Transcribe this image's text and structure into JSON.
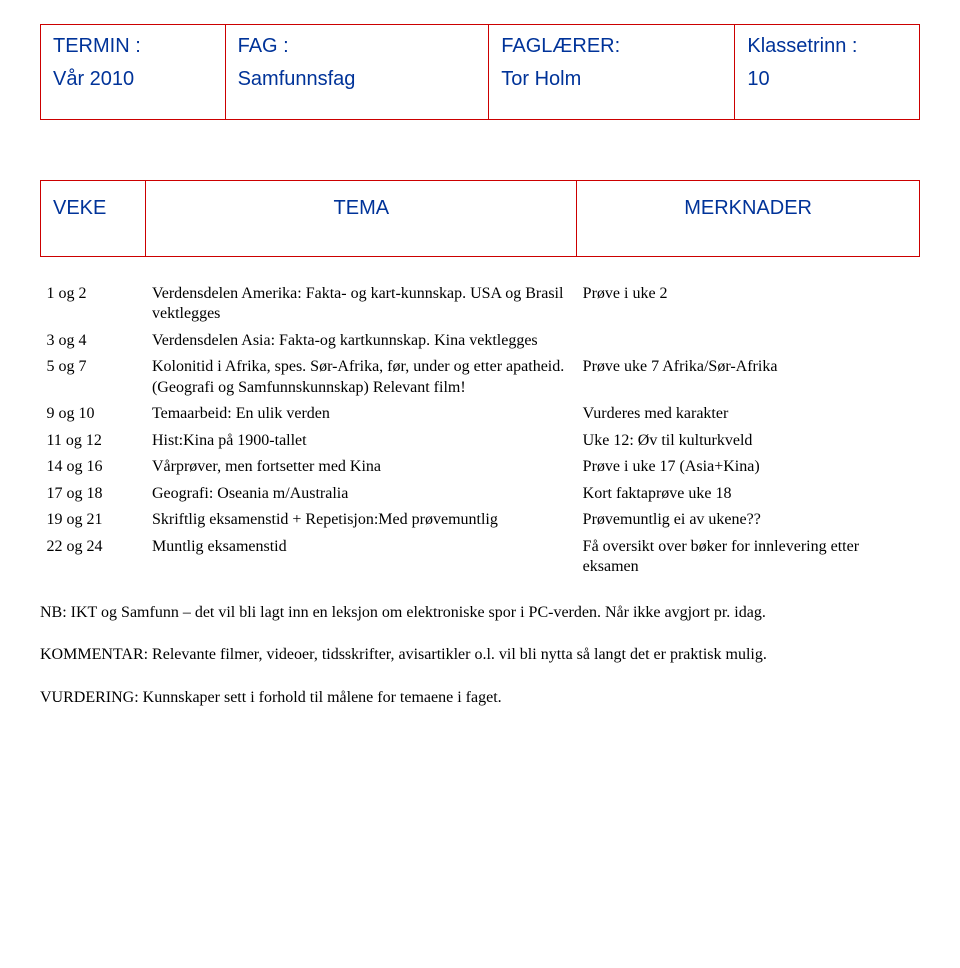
{
  "header": {
    "termin_label": "TERMIN :",
    "termin_value": "Vår 2010",
    "fag_label": "FAG :",
    "fag_value": "Samfunnsfag",
    "laerer_label": "FAGLÆRER:",
    "laerer_value": "Tor Holm",
    "trinn_label": "Klassetrinn :",
    "trinn_value": "10"
  },
  "columns": {
    "week": "VEKE",
    "tema": "TEMA",
    "merk": "MERKNADER"
  },
  "rows": [
    {
      "week": "1 og 2",
      "tema": "Verdensdelen Amerika: Fakta- og kart-kunnskap. USA og Brasil vektlegges",
      "merk": "Prøve i uke 2"
    },
    {
      "week": "3 og 4",
      "tema": "Verdensdelen Asia: Fakta-og kartkunnskap. Kina vektlegges",
      "merk": ""
    },
    {
      "week": "5 og 7",
      "tema": "Kolonitid i Afrika, spes. Sør-Afrika, før, under og etter apatheid.(Geografi og Samfunnskunnskap) Relevant film!",
      "merk": "Prøve uke 7 Afrika/Sør-Afrika"
    },
    {
      "week": "9 og 10",
      "tema": "Temaarbeid: En ulik verden",
      "merk": "Vurderes med karakter"
    },
    {
      "week": "11 og 12",
      "tema": "Hist:Kina på 1900-tallet",
      "merk": "Uke 12: Øv til kulturkveld"
    },
    {
      "week": "14 og 16",
      "tema": "Vårprøver, men fortsetter med Kina",
      "merk": "Prøve i uke 17 (Asia+Kina)"
    },
    {
      "week": "17 og 18",
      "tema": "Geografi: Oseania m/Australia",
      "merk": "Kort faktaprøve uke 18"
    },
    {
      "week": "19 og 21",
      "tema": "Skriftlig eksamenstid + Repetisjon:Med prøvemuntlig",
      "merk": "Prøvemuntlig ei av ukene??"
    },
    {
      "week": "22 og 24",
      "tema": "Muntlig eksamenstid",
      "merk": "Få oversikt over bøker for innlevering etter eksamen"
    }
  ],
  "notes": {
    "nb": "NB: IKT og Samfunn – det vil bli lagt inn en leksjon om elektroniske spor i PC-verden. Når ikke avgjort pr. idag.",
    "kommentar": "KOMMENTAR: Relevante filmer, videoer, tidsskrifter, avisartikler o.l. vil bli nytta så langt det er praktisk mulig.",
    "vurdering": "VURDERING: Kunnskaper sett i forhold til  målene for temaene i faget."
  }
}
